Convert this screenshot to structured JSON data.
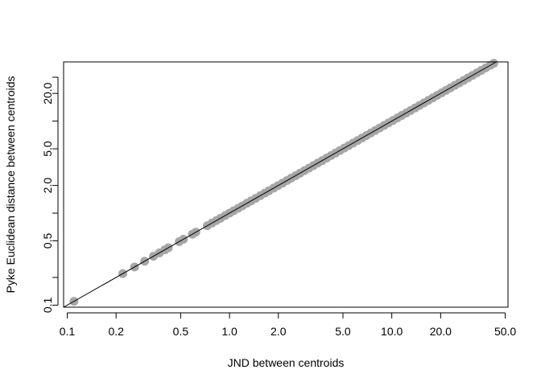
{
  "chart_data": {
    "type": "scatter",
    "title": "",
    "xlabel": "JND between centroids",
    "ylabel": "Pyke Euclidean distance between centroids",
    "x_scale": "log",
    "y_scale": "log",
    "xlim": [
      0.095,
      52
    ],
    "ylim": [
      0.095,
      44
    ],
    "x_ticks": [
      0.1,
      0.2,
      0.5,
      1.0,
      2.0,
      5.0,
      10.0,
      20.0,
      50.0
    ],
    "x_tick_labels": [
      "0.1",
      "0.2",
      "0.5",
      "1.0",
      "2.0",
      "5.0",
      "10.0",
      "20.0",
      "50.0"
    ],
    "y_ticks": [
      0.1,
      0.2,
      0.5,
      1.0,
      2.0,
      5.0,
      10.0,
      20.0
    ],
    "y_tick_labels": [
      "0.1",
      "",
      "0.5",
      "",
      "2.0",
      "5.0",
      "",
      "20.0"
    ],
    "y_minor_ticks": [
      30.0
    ],
    "grid": false,
    "reference_line": "y = x",
    "point_color": "#a6a6a6",
    "line_color": "#000000",
    "points": [
      [
        0.11,
        0.11
      ],
      [
        0.22,
        0.22
      ],
      [
        0.26,
        0.26
      ],
      [
        0.3,
        0.3
      ],
      [
        0.34,
        0.34
      ],
      [
        0.37,
        0.37
      ],
      [
        0.4,
        0.4
      ],
      [
        0.42,
        0.42
      ],
      [
        0.49,
        0.49
      ],
      [
        0.52,
        0.52
      ],
      [
        0.59,
        0.59
      ],
      [
        0.62,
        0.62
      ],
      [
        0.73,
        0.73
      ],
      [
        0.78,
        0.78
      ],
      [
        0.83,
        0.83
      ],
      [
        0.88,
        0.88
      ],
      [
        0.94,
        0.94
      ],
      [
        1.0,
        1.0
      ],
      [
        1.06,
        1.06
      ],
      [
        1.13,
        1.13
      ],
      [
        1.2,
        1.2
      ],
      [
        1.28,
        1.28
      ],
      [
        1.36,
        1.36
      ],
      [
        1.45,
        1.45
      ],
      [
        1.55,
        1.55
      ],
      [
        1.65,
        1.65
      ],
      [
        1.75,
        1.75
      ],
      [
        1.87,
        1.87
      ],
      [
        1.99,
        1.99
      ],
      [
        2.12,
        2.12
      ],
      [
        2.26,
        2.26
      ],
      [
        2.4,
        2.4
      ],
      [
        2.56,
        2.56
      ],
      [
        2.72,
        2.72
      ],
      [
        2.9,
        2.9
      ],
      [
        3.09,
        3.09
      ],
      [
        3.29,
        3.29
      ],
      [
        3.5,
        3.5
      ],
      [
        3.73,
        3.73
      ],
      [
        3.97,
        3.97
      ],
      [
        4.23,
        4.23
      ],
      [
        4.5,
        4.5
      ],
      [
        4.79,
        4.79
      ],
      [
        5.1,
        5.1
      ],
      [
        5.43,
        5.43
      ],
      [
        5.78,
        5.78
      ],
      [
        6.16,
        6.16
      ],
      [
        6.56,
        6.56
      ],
      [
        6.98,
        6.98
      ],
      [
        7.43,
        7.43
      ],
      [
        7.91,
        7.91
      ],
      [
        8.42,
        8.42
      ],
      [
        8.97,
        8.97
      ],
      [
        9.55,
        9.55
      ],
      [
        10.17,
        10.17
      ],
      [
        10.83,
        10.83
      ],
      [
        11.53,
        11.53
      ],
      [
        12.27,
        12.27
      ],
      [
        13.07,
        13.07
      ],
      [
        13.91,
        13.91
      ],
      [
        14.81,
        14.81
      ],
      [
        15.77,
        15.77
      ],
      [
        16.79,
        16.79
      ],
      [
        17.88,
        17.88
      ],
      [
        19.03,
        19.03
      ],
      [
        20.27,
        20.27
      ],
      [
        21.58,
        21.58
      ],
      [
        22.97,
        22.97
      ],
      [
        24.46,
        24.46
      ],
      [
        26.04,
        26.04
      ],
      [
        27.72,
        27.72
      ],
      [
        29.52,
        29.52
      ],
      [
        31.43,
        31.43
      ],
      [
        33.46,
        33.46
      ],
      [
        35.62,
        35.62
      ],
      [
        37.93,
        37.93
      ],
      [
        40.38,
        40.38
      ],
      [
        42.5,
        42.5
      ]
    ]
  }
}
